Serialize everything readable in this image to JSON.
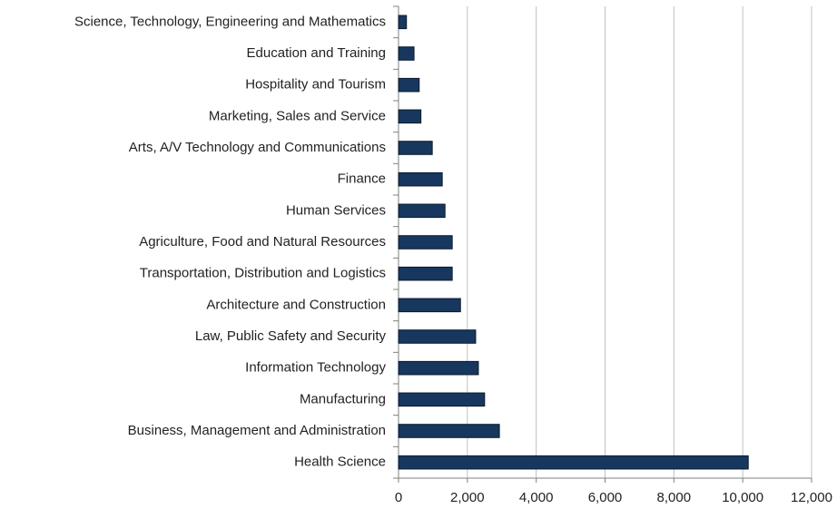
{
  "chart_data": {
    "type": "bar",
    "orientation": "horizontal",
    "color": "#17375e",
    "grid": true,
    "categories": [
      "Science, Technology, Engineering and Mathematics",
      "Education and Training",
      "Hospitality and Tourism",
      "Marketing, Sales and Service",
      "Arts, A/V Technology and Communications",
      "Finance",
      "Human Services",
      "Agriculture, Food and Natural Resources",
      "Transportation, Distribution and Logistics",
      "Architecture and Construction",
      "Law, Public Safety and Security",
      "Information Technology",
      "Manufacturing",
      "Business, Management and Administration",
      "Health Science"
    ],
    "values": [
      230,
      450,
      600,
      650,
      980,
      1270,
      1350,
      1560,
      1560,
      1800,
      2240,
      2320,
      2500,
      2930,
      10160
    ],
    "xlim": [
      0,
      12000
    ],
    "xticks": [
      0,
      {
        "value": 2000,
        "label": "2,000"
      },
      {
        "value": 4000,
        "label": "4,000"
      },
      {
        "value": 6000,
        "label": "6,000"
      },
      {
        "value": 8000,
        "label": "8,000"
      },
      {
        "value": 10000,
        "label": "10,000"
      },
      {
        "value": 12000,
        "label": "12,000"
      }
    ]
  }
}
